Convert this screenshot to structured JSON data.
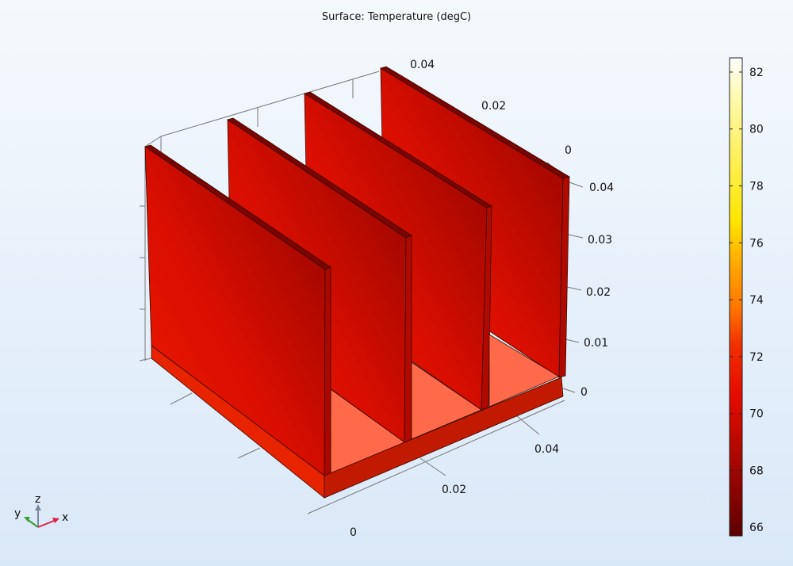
{
  "chart_data": {
    "type": "3d-surface",
    "title": "Surface: Temperature (degC)",
    "geometry": "heat sink: base plate with 4 vertical fins",
    "x_ticks": [
      "0",
      "0.02",
      "0.04"
    ],
    "y_ticks": [
      "0",
      "0.02",
      "0.04"
    ],
    "z_ticks": [
      "0",
      "0.01",
      "0.02",
      "0.03",
      "0.04"
    ],
    "colorbar": {
      "range": [
        65.7,
        82.5
      ],
      "ticks": [
        "82",
        "80",
        "78",
        "76",
        "74",
        "72",
        "70",
        "68",
        "66"
      ],
      "colormap": "heat (dark red → red → orange → yellow → white)"
    },
    "surface_temperature_range_shown": [
      66,
      71
    ],
    "colors": {
      "fin_hot": "#e81400",
      "fin_cool": "#9a0600",
      "base_top": "#ff6a4a",
      "base_side": "#c21a00"
    }
  },
  "triad": {
    "x": "x",
    "y": "y",
    "z": "z"
  }
}
